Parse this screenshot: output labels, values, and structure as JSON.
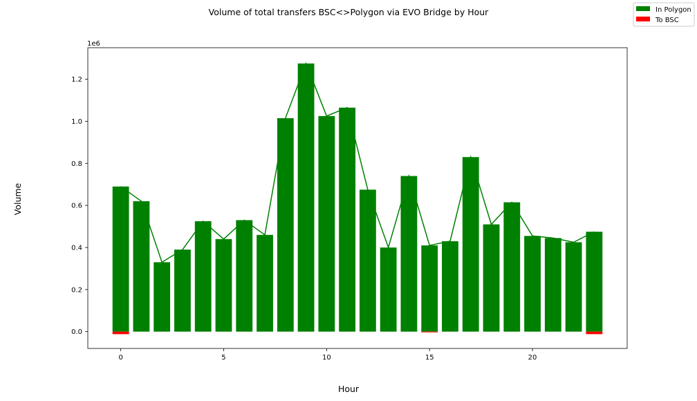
{
  "chart_data": {
    "type": "bar",
    "title": "Volume of total transfers BSC<>Polygon via EVO Bridge by Hour",
    "xlabel": "Hour",
    "ylabel": "Volume",
    "y_offset_label": "1e6",
    "xlim": [
      -1.6,
      24.6
    ],
    "ylim": [
      -0.08,
      1.35
    ],
    "x_ticks": [
      0,
      5,
      10,
      15,
      20
    ],
    "y_ticks": [
      0.0,
      0.2,
      0.4,
      0.6,
      0.8,
      1.0,
      1.2
    ],
    "grid": false,
    "legend_position": "top-right",
    "x": [
      0,
      1,
      2,
      3,
      4,
      5,
      6,
      7,
      8,
      9,
      10,
      11,
      12,
      13,
      14,
      15,
      16,
      17,
      18,
      19,
      20,
      21,
      22,
      23
    ],
    "series": [
      {
        "name": "In Polygon",
        "color": "#008000",
        "values": [
          0.69,
          0.62,
          0.33,
          0.39,
          0.525,
          0.44,
          0.53,
          0.46,
          1.015,
          1.275,
          1.025,
          1.065,
          0.675,
          0.4,
          0.74,
          0.41,
          0.43,
          0.83,
          0.51,
          0.615,
          0.455,
          0.445,
          0.425,
          0.475
        ]
      },
      {
        "name": "To BSC",
        "color": "#ff0000",
        "values": [
          -0.012,
          0,
          0,
          0,
          0,
          0,
          0,
          0,
          0,
          0,
          0,
          0,
          0,
          0,
          0,
          -0.003,
          0,
          0,
          0,
          0,
          0,
          0,
          0,
          -0.012
        ]
      }
    ],
    "total_line": {
      "color": "#008000",
      "values": [
        0.69,
        0.62,
        0.33,
        0.39,
        0.525,
        0.44,
        0.53,
        0.46,
        1.015,
        1.275,
        1.025,
        1.065,
        0.675,
        0.4,
        0.74,
        0.41,
        0.43,
        0.83,
        0.51,
        0.615,
        0.455,
        0.445,
        0.425,
        0.475
      ]
    }
  }
}
